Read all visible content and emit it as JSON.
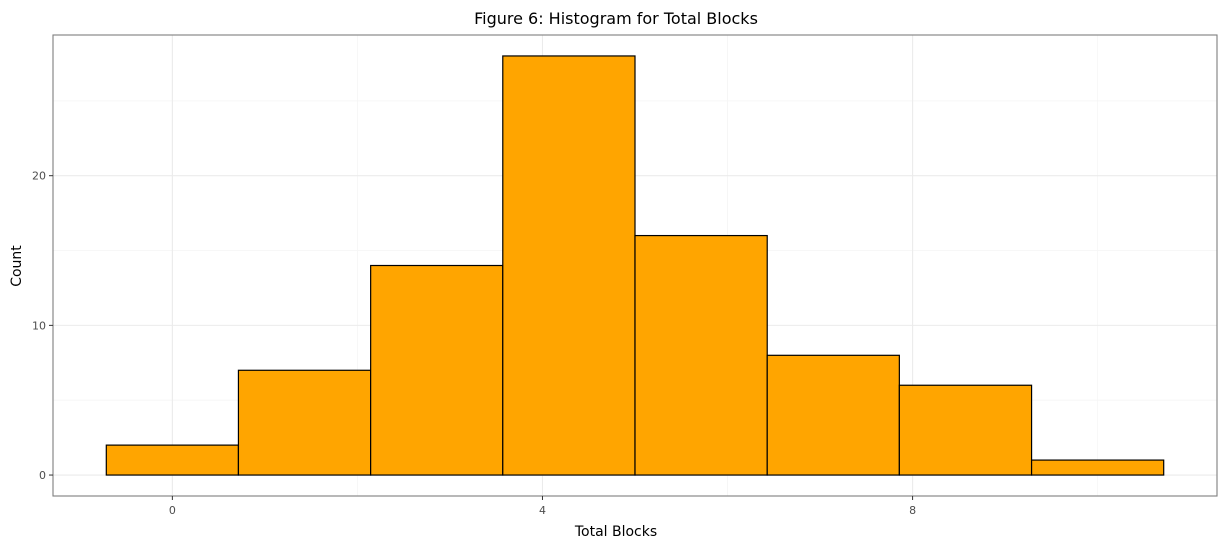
{
  "chart_data": {
    "type": "bar",
    "title": "Figure 6: Histogram for Total Blocks",
    "xlabel": "Total Blocks",
    "ylabel": "Count",
    "bins": [
      {
        "x_start": -0.714,
        "x_end": 0.714,
        "count": 2
      },
      {
        "x_start": 0.714,
        "x_end": 2.143,
        "count": 7
      },
      {
        "x_start": 2.143,
        "x_end": 3.571,
        "count": 14
      },
      {
        "x_start": 3.571,
        "x_end": 5.0,
        "count": 28
      },
      {
        "x_start": 5.0,
        "x_end": 6.429,
        "count": 16
      },
      {
        "x_start": 6.429,
        "x_end": 7.857,
        "count": 8
      },
      {
        "x_start": 7.857,
        "x_end": 9.286,
        "count": 6
      },
      {
        "x_start": 9.286,
        "x_end": 10.714,
        "count": 1
      }
    ],
    "xlim": [
      -1.29,
      11.29
    ],
    "ylim": [
      -1.4,
      29.4
    ],
    "x_ticks": [
      0,
      4,
      8
    ],
    "x_ticks_minor": [
      2,
      6,
      10
    ],
    "y_ticks": [
      0,
      10,
      20
    ],
    "y_ticks_minor": [
      5,
      15,
      25
    ],
    "grid": true,
    "colors": {
      "bar_fill": "#FFA500",
      "bar_stroke": "#000000",
      "panel_border": "#7f7f7f",
      "grid_major": "#ebebeb",
      "grid_minor": "#f5f5f5"
    }
  }
}
